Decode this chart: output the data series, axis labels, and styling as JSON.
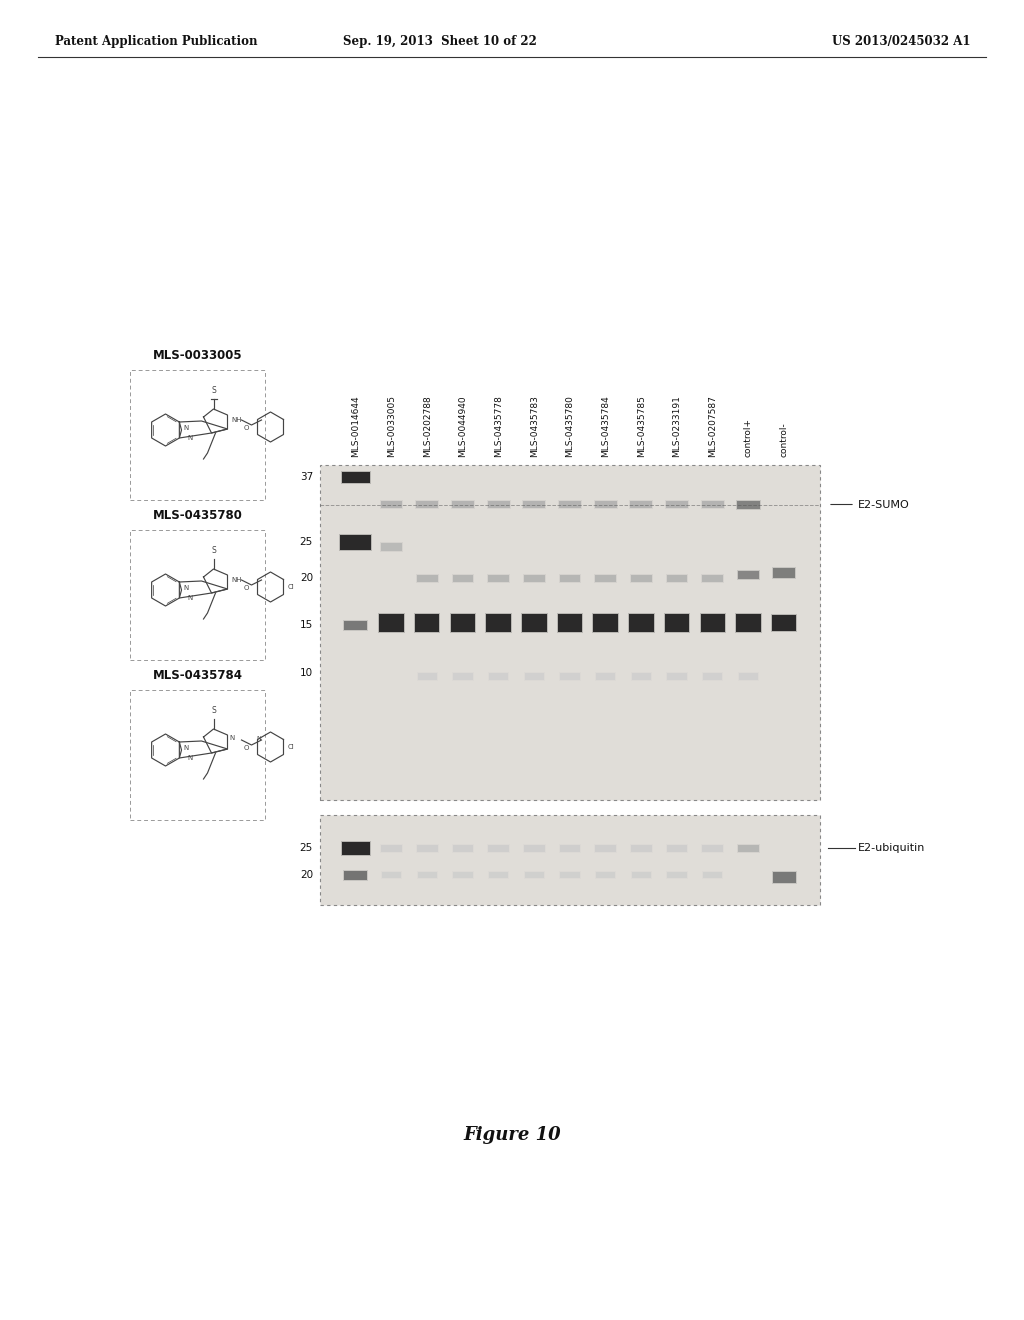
{
  "background_color": "#ffffff",
  "header_left": "Patent Application Publication",
  "header_center": "Sep. 19, 2013  Sheet 10 of 22",
  "header_right": "US 2013/0245032 A1",
  "figure_caption": "Figure 10",
  "compound_labels": [
    "MLS-0033005",
    "MLS-0435780",
    "MLS-0435784"
  ],
  "lane_labels": [
    "MLS-0014644",
    "MLS-0033005",
    "MLS-0202788",
    "MLS-0044940",
    "MLS-0435778",
    "MLS-0435783",
    "MLS-0435780",
    "MLS-0435784",
    "MLS-0435785",
    "MLS-0233191",
    "MLS-0207587",
    "control+",
    "control-"
  ],
  "y_ticks_top": [
    37,
    25,
    20,
    15,
    10
  ],
  "y_ticks_bottom": [
    25,
    20
  ],
  "label_E2SUMO": "E2-SUMO",
  "label_E2ubiquitin": "E2-ubiquitin",
  "gel_bg": "#e0ddd8",
  "band_dark": "#1a1a1a",
  "band_medium": "#666666",
  "band_light": "#aaaaaa",
  "band_very_light": "#cccccc"
}
